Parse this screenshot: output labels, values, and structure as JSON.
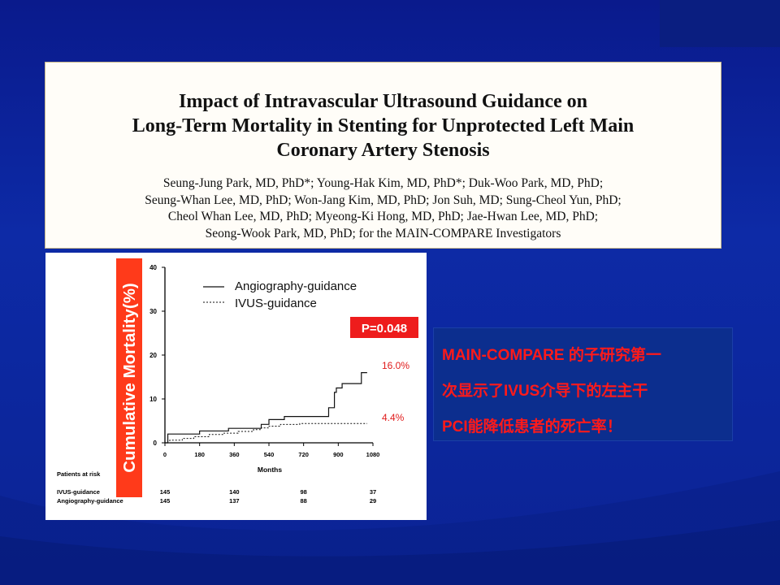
{
  "slide": {
    "colors": {
      "background": "#0d2aa6",
      "callout_text": "#ff1a1a",
      "ylabel_bg": "#ff3a1a"
    }
  },
  "paper": {
    "title_lines": [
      "Impact of Intravascular Ultrasound Guidance on",
      "Long-Term Mortality in Stenting for Unprotected Left Main",
      "Coronary Artery Stenosis"
    ],
    "author_lines": [
      "Seung-Jung Park, MD, PhD*; Young-Hak Kim, MD, PhD*; Duk-Woo Park, MD, PhD;",
      "Seung-Whan Lee, MD, PhD; Won-Jang Kim, MD, PhD; Jon Suh, MD; Sung-Cheol Yun, PhD;",
      "Cheol Whan Lee, MD, PhD; Myeong-Ki Hong, MD, PhD; Jae-Hwan Lee, MD, PhD;",
      "Seong-Wook Park, MD, PhD; for the MAIN-COMPARE Investigators"
    ]
  },
  "callout": {
    "lines": [
      "MAIN-COMPARE 的子研究第一",
      "次显示了IVUS介导下的左主干",
      "PCI能降低患者的死亡率！"
    ]
  },
  "chart_data": {
    "type": "line",
    "ylabel": "Cumulative Mortality(%)",
    "xlabel": "Months",
    "xlim": [
      0,
      1080
    ],
    "ylim": [
      0,
      40
    ],
    "x_ticks": [
      0,
      180,
      360,
      540,
      720,
      900,
      1080
    ],
    "y_ticks": [
      0,
      10,
      20,
      30,
      40
    ],
    "grid": false,
    "legend_position": "top-right",
    "p_value_label": "P=0.048",
    "series": [
      {
        "name": "Angiography-guidance",
        "style": "solid",
        "color": "#111111",
        "end_label": "16.0%",
        "x": [
          0,
          15,
          130,
          180,
          250,
          330,
          420,
          500,
          540,
          620,
          700,
          770,
          850,
          880,
          890,
          920,
          1020,
          1050
        ],
        "y": [
          0,
          2.0,
          2.0,
          2.7,
          2.7,
          3.3,
          3.3,
          4.2,
          5.3,
          6.0,
          6.0,
          6.0,
          8.0,
          11.5,
          12.5,
          13.5,
          16.0,
          16.0
        ]
      },
      {
        "name": "IVUS-guidance",
        "style": "dashed",
        "color": "#111111",
        "end_label": "4.4%",
        "x": [
          0,
          25,
          90,
          150,
          230,
          300,
          380,
          460,
          500,
          540,
          600,
          700,
          800,
          1050
        ],
        "y": [
          0,
          0.6,
          1.0,
          1.4,
          1.9,
          2.2,
          2.6,
          3.0,
          3.4,
          3.8,
          4.2,
          4.4,
          4.4,
          4.4
        ]
      }
    ],
    "risk_table": {
      "title": "Patients at risk",
      "rows": [
        {
          "label": "IVUS-guidance",
          "values": [
            145,
            140,
            98,
            37
          ]
        },
        {
          "label": "Angiography-guidance",
          "values": [
            145,
            137,
            88,
            29
          ]
        }
      ],
      "at_months": [
        0,
        360,
        720,
        1080
      ]
    }
  }
}
